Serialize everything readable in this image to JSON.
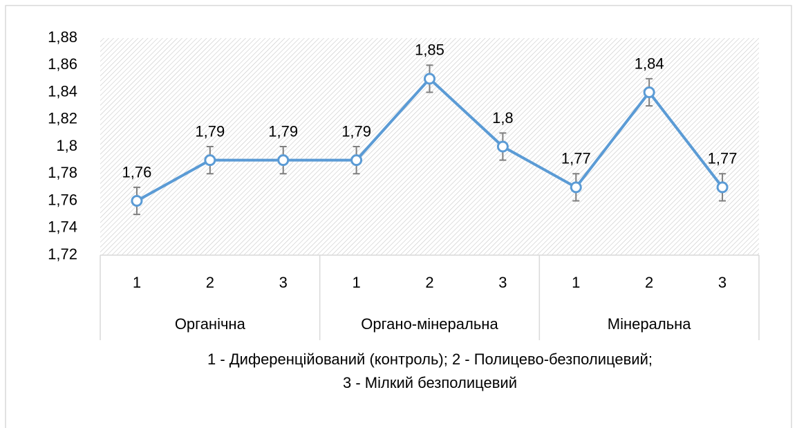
{
  "chart_data": {
    "type": "line",
    "categories": [
      "1",
      "2",
      "3",
      "1",
      "2",
      "3",
      "1",
      "2",
      "3"
    ],
    "category_groups": [
      "Органічна",
      "Органо-мінеральна",
      "Мінеральна"
    ],
    "xlabel": [
      "1 - Диференційований (контроль); 2 - Полицево-безполицевий;",
      "3 - Мілкий безполицевий"
    ],
    "series": [
      {
        "color": "#5b9bd5",
        "values": [
          1.76,
          1.79,
          1.79,
          1.79,
          1.85,
          1.8,
          1.77,
          1.84,
          1.77
        ],
        "value_labels": [
          "1,76",
          "1,79",
          "1,79",
          "1,79",
          "1,85",
          "1,8",
          "1,77",
          "1,84",
          "1,77"
        ],
        "errors": [
          0.01,
          0.01,
          0.01,
          0.01,
          0.01,
          0.01,
          0.01,
          0.01,
          0.01
        ]
      }
    ],
    "ylim": [
      1.72,
      1.88
    ],
    "yticks": [
      {
        "value": 1.72,
        "label": "1,72"
      },
      {
        "value": 1.74,
        "label": "1,74"
      },
      {
        "value": 1.76,
        "label": "1,76"
      },
      {
        "value": 1.78,
        "label": "1,78"
      },
      {
        "value": 1.8,
        "label": "1,8"
      },
      {
        "value": 1.82,
        "label": "1,82"
      },
      {
        "value": 1.84,
        "label": "1,84"
      },
      {
        "value": 1.86,
        "label": "1,86"
      },
      {
        "value": 1.88,
        "label": "1,88"
      }
    ],
    "hatched_plot_area": true
  }
}
